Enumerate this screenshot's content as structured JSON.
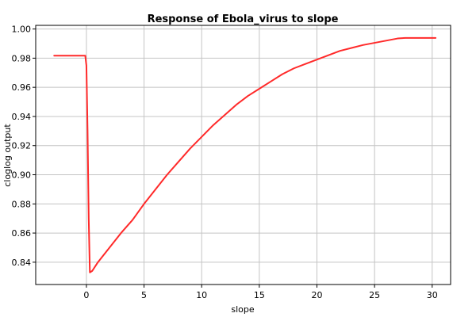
{
  "chart_data": {
    "type": "line",
    "title": "Response of Ebola_virus to slope",
    "xlabel": "slope",
    "ylabel": "cloglog output",
    "xlim": [
      -4.4,
      31.6
    ],
    "ylim": [
      0.8247,
      1.0025
    ],
    "x_ticks": [
      0,
      5,
      10,
      15,
      20,
      25,
      30
    ],
    "y_ticks": [
      0.84,
      0.86,
      0.88,
      0.9,
      0.92,
      0.94,
      0.96,
      0.98,
      1.0
    ],
    "x_tick_labels": [
      "0",
      "5",
      "10",
      "15",
      "20",
      "25",
      "30"
    ],
    "y_tick_labels": [
      "0.84",
      "0.86",
      "0.88",
      "0.90",
      "0.92",
      "0.94",
      "0.96",
      "0.98",
      "1.00"
    ],
    "grid": true,
    "series": [
      {
        "color": "#ff2a2a",
        "x": [
          -2.8,
          -0.1,
          0.0,
          0.1,
          0.2,
          0.3,
          0.5,
          1,
          2,
          3,
          4,
          5,
          6,
          7,
          8,
          9,
          10,
          11,
          12,
          13,
          14,
          15,
          16,
          17,
          18,
          19,
          20,
          21,
          22,
          23,
          24,
          25,
          26,
          27,
          27.7,
          30.3
        ],
        "y": [
          0.9817,
          0.9817,
          0.975,
          0.93,
          0.87,
          0.833,
          0.834,
          0.84,
          0.85,
          0.86,
          0.869,
          0.88,
          0.89,
          0.9,
          0.909,
          0.918,
          0.926,
          0.934,
          0.941,
          0.948,
          0.954,
          0.959,
          0.964,
          0.969,
          0.973,
          0.976,
          0.979,
          0.982,
          0.985,
          0.987,
          0.989,
          0.9905,
          0.992,
          0.9935,
          0.9939,
          0.9939
        ]
      }
    ]
  }
}
